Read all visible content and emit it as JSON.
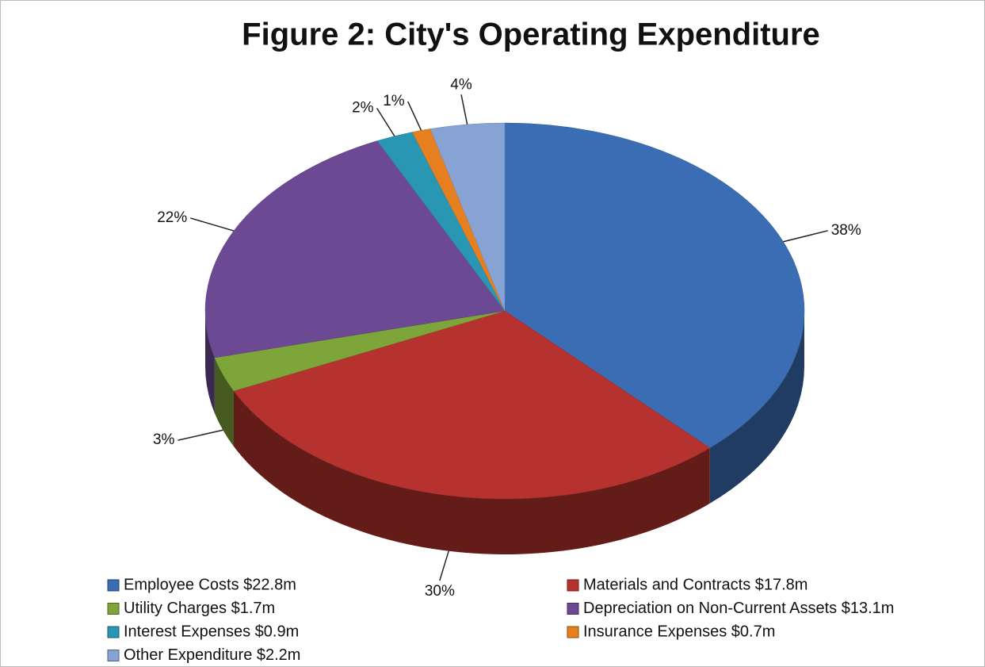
{
  "chart_data": {
    "type": "pie",
    "title": "Figure 2: City's Operating Expenditure",
    "categories": [
      "Employee Costs $22.8m",
      "Materials and Contracts $17.8m",
      "Utility Charges $1.7m",
      "Depreciation on Non-Current Assets $13.1m",
      "Interest Expenses $0.9m",
      "Insurance Expenses $0.7m",
      "Other Expenditure $2.2m"
    ],
    "values": [
      38,
      30,
      3,
      22,
      2,
      1,
      4
    ],
    "value_labels": [
      "38%",
      "30%",
      "3%",
      "22%",
      "2%",
      "1%",
      "4%"
    ],
    "colors": [
      "#3a6db4",
      "#b5322e",
      "#7ea53a",
      "#6b4a93",
      "#2997b3",
      "#e57f1f",
      "#87a3d4"
    ],
    "legend": "bottom"
  }
}
